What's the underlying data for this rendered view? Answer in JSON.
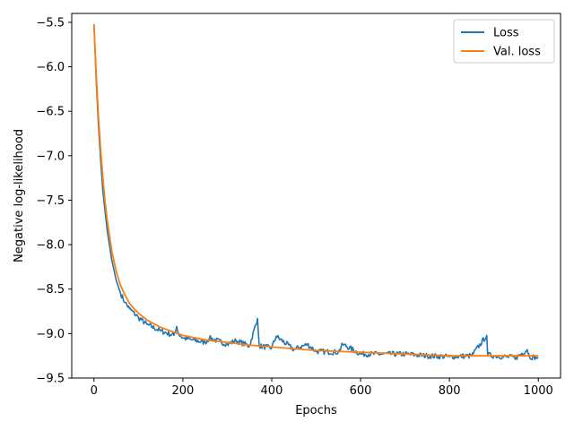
{
  "chart_data": {
    "type": "line",
    "title": "",
    "xlabel": "Epochs",
    "ylabel": "Negative log-likelihood",
    "xlim": [
      -50,
      1050
    ],
    "ylim": [
      -9.5,
      -5.4
    ],
    "xticks": [
      0,
      200,
      400,
      600,
      800,
      1000
    ],
    "xtick_labels": [
      "0",
      "200",
      "400",
      "600",
      "800",
      "1000"
    ],
    "yticks": [
      -9.5,
      -9.0,
      -8.5,
      -8.0,
      -7.5,
      -7.0,
      -6.5,
      -6.0,
      -5.5
    ],
    "ytick_labels": [
      "−9.5",
      "−9.0",
      "−8.5",
      "−8.0",
      "−7.5",
      "−7.0",
      "−6.5",
      "−6.0",
      "−5.5"
    ],
    "grid": false,
    "legend_position": "top-right",
    "series": [
      {
        "name": "Loss",
        "color": "#1f77b4",
        "x": [
          0,
          5,
          10,
          15,
          20,
          30,
          40,
          50,
          60,
          70,
          80,
          100,
          120,
          150,
          180,
          186,
          190,
          200,
          220,
          250,
          260,
          300,
          320,
          350,
          368,
          370,
          372,
          400,
          410,
          450,
          480,
          500,
          550,
          560,
          600,
          650,
          700,
          750,
          800,
          850,
          884,
          886,
          900,
          950,
          975,
          980,
          1000
        ],
        "y": [
          -5.52,
          -6.15,
          -6.65,
          -7.05,
          -7.4,
          -7.85,
          -8.17,
          -8.4,
          -8.55,
          -8.65,
          -8.72,
          -8.82,
          -8.9,
          -8.97,
          -9.02,
          -8.92,
          -9.0,
          -9.05,
          -9.07,
          -9.1,
          -9.05,
          -9.12,
          -9.08,
          -9.14,
          -8.83,
          -9.0,
          -9.14,
          -9.16,
          -9.03,
          -9.18,
          -9.12,
          -9.2,
          -9.21,
          -9.12,
          -9.23,
          -9.23,
          -9.23,
          -9.25,
          -9.26,
          -9.25,
          -9.02,
          -9.24,
          -9.25,
          -9.27,
          -9.18,
          -9.26,
          -9.27
        ]
      },
      {
        "name": "Val. loss",
        "color": "#ff7f0e",
        "x": [
          0,
          5,
          10,
          15,
          20,
          25,
          30,
          40,
          50,
          60,
          70,
          80,
          90,
          100,
          120,
          150,
          200,
          250,
          300,
          350,
          400,
          450,
          500,
          550,
          600,
          650,
          700,
          750,
          800,
          850,
          900,
          950,
          1000
        ],
        "y": [
          -5.52,
          -6.08,
          -6.55,
          -6.93,
          -7.25,
          -7.52,
          -7.73,
          -8.07,
          -8.3,
          -8.46,
          -8.57,
          -8.66,
          -8.72,
          -8.77,
          -8.85,
          -8.93,
          -9.02,
          -9.07,
          -9.1,
          -9.13,
          -9.15,
          -9.17,
          -9.19,
          -9.2,
          -9.21,
          -9.22,
          -9.23,
          -9.24,
          -9.25,
          -9.25,
          -9.25,
          -9.25,
          -9.25
        ]
      }
    ]
  }
}
